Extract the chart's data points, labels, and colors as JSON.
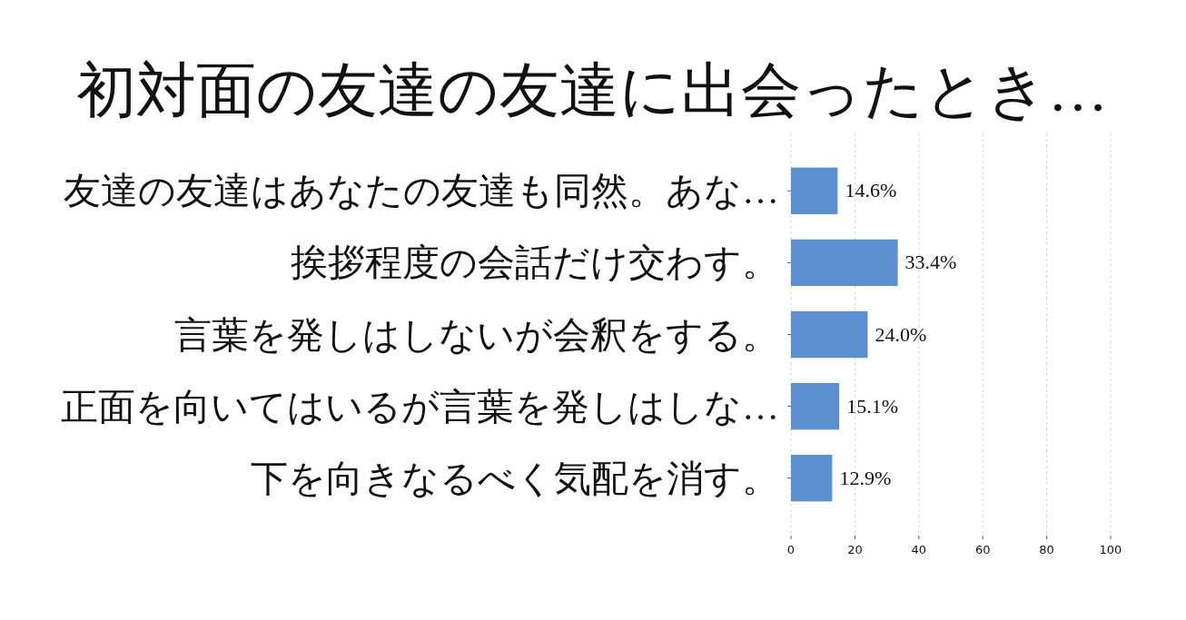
{
  "chart_data": {
    "type": "bar",
    "orientation": "horizontal",
    "title": "初対面の友達の友達に出会ったとき…",
    "categories": [
      "友達の友達はあなたの友達も同然。あな…",
      "挨拶程度の会話だけ交わす。",
      "言葉を発しはしないが会釈をする。",
      "正面を向いてはいるが言葉を発しはしな…",
      "下を向きなるべく気配を消す。"
    ],
    "values": [
      14.6,
      33.4,
      24.0,
      15.1,
      12.9
    ],
    "value_labels": [
      "14.6%",
      "33.4%",
      "24.0%",
      "15.1%",
      "12.9%"
    ],
    "color": "#5b8fcf",
    "xlim": [
      0,
      100
    ],
    "xticks": [
      0,
      20,
      40,
      60,
      80,
      100
    ],
    "grid": "x"
  }
}
